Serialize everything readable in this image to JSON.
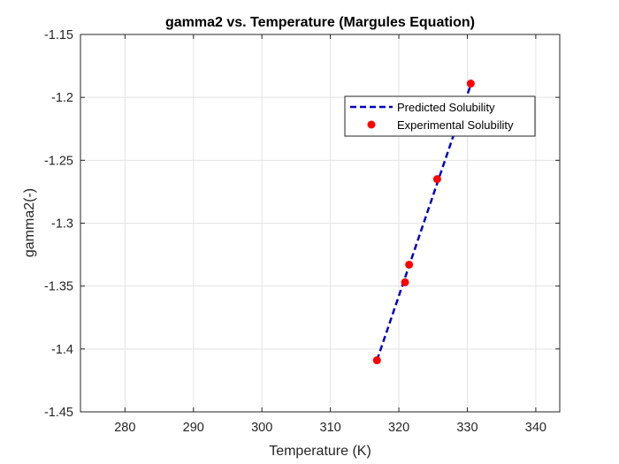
{
  "chart_data": {
    "type": "line",
    "title": "gamma2 vs. Temperature (Margules Equation)",
    "xlabel": "Temperature (K)",
    "ylabel": "gamma2(-)",
    "xlim": [
      273.5,
      343.5
    ],
    "ylim": [
      -1.45,
      -1.15
    ],
    "xticks": [
      280,
      290,
      300,
      310,
      320,
      330,
      340
    ],
    "yticks": [
      -1.45,
      -1.4,
      -1.35,
      -1.3,
      -1.25,
      -1.2,
      -1.15
    ],
    "grid": true,
    "legend_position": "top-right",
    "series": [
      {
        "name": "Predicted Solubility",
        "kind": "line",
        "style": "dashed",
        "color": "#0000cc",
        "x": [
          316.8,
          330.5
        ],
        "y": [
          -1.409,
          -1.19
        ]
      },
      {
        "name": "Experimental Solubility",
        "kind": "scatter",
        "marker": "circle",
        "color": "#ff0000",
        "x": [
          316.8,
          320.9,
          321.5,
          325.6,
          330.5
        ],
        "y": [
          -1.409,
          -1.347,
          -1.333,
          -1.265,
          -1.189
        ]
      }
    ]
  }
}
